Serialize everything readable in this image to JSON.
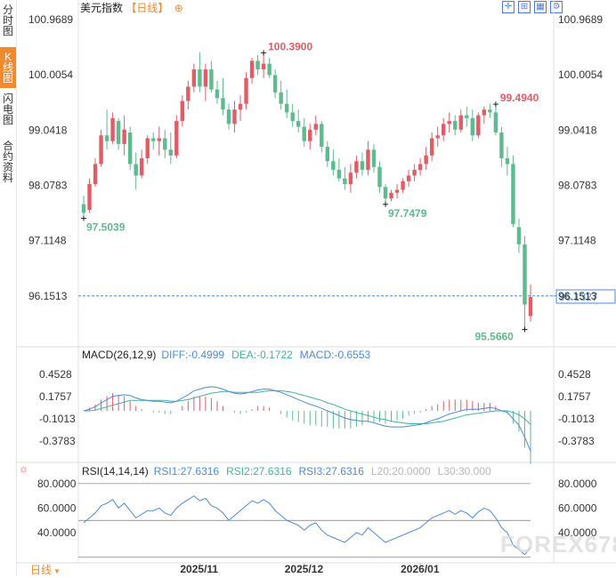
{
  "side_tabs": [
    {
      "label": "分时图",
      "active": false
    },
    {
      "label": "K线图",
      "active": true
    },
    {
      "label": "闪电图",
      "active": false
    },
    {
      "label": "合约资料",
      "active": false
    }
  ],
  "header": {
    "title": "美元指数",
    "period": "【日线】",
    "plus_icon": "⊕"
  },
  "toolbar": {
    "icons": [
      "crosshair-icon",
      "grid-icon",
      "calendar-icon",
      "settings-icon"
    ],
    "glyphs": [
      "✛",
      "⊞",
      "▦",
      "⚙"
    ]
  },
  "colors": {
    "up": "#e25b65",
    "down": "#5dbb8d",
    "dif": "#4b8ad6",
    "dea": "#3fb59b",
    "rsi": "#4b8ad6",
    "grid": "#e6e6e6",
    "last": "#4b8ad6",
    "accent": "#f28a2b"
  },
  "main_chart": {
    "y_ticks": [
      "100.9689",
      "100.0054",
      "99.0418",
      "98.0783",
      "97.1148",
      "96.1513"
    ],
    "y_min": 95.45,
    "y_max": 101.0,
    "last_price": "96.1327",
    "last_price_value": 96.1327,
    "dashed_level": 96.1513,
    "annotations": [
      {
        "label": "100.3900",
        "value": 100.39,
        "index": 31,
        "color": "#e25b65"
      },
      {
        "label": "99.4940",
        "value": 99.494,
        "index": 71,
        "color": "#e25b65"
      },
      {
        "label": "97.5039",
        "value": 97.5039,
        "index": 0,
        "color": "#5dbb8d"
      },
      {
        "label": "97.7479",
        "value": 97.7479,
        "index": 52,
        "color": "#5dbb8d"
      },
      {
        "label": "95.5660",
        "value": 95.566,
        "index": 76,
        "color": "#5dbb8d"
      }
    ]
  },
  "macd": {
    "label": "MACD(26,12,9)",
    "dif_label": "DIFF:-0.4999",
    "dea_label": "DEA:-0.1722",
    "macd_label": "MACD:-0.6553",
    "y_ticks": [
      "0.4528",
      "0.1757",
      "-0.1013",
      "-0.3783"
    ],
    "y_min": -0.62,
    "y_max": 0.62
  },
  "rsi": {
    "label": "RSI(14,14,14)",
    "rsi1_label": "RSI1:27.6316",
    "rsi2_label": "RSI2:27.6316",
    "rsi3_label": "RSI3:27.6316",
    "l20_label": "L20:20.0000",
    "l30_label": "L30:30.000",
    "y_ticks": [
      "80.0000",
      "60.0000",
      "40.0000"
    ],
    "y_min": 16,
    "y_max": 85,
    "sun_icon": "☼"
  },
  "x_labels": [
    {
      "label": "2025/11",
      "index": 20
    },
    {
      "label": "2025/12",
      "index": 38
    },
    {
      "label": "2026/01",
      "index": 58
    }
  ],
  "period_button": "日线",
  "watermark": "FOREX678",
  "chart_data": {
    "type": "candlestick",
    "title": "美元指数【日线】",
    "series": [
      {
        "name": "美元指数",
        "ohlc": [
          [
            97.75,
            97.9,
            97.5,
            97.6
          ],
          [
            97.65,
            98.2,
            97.6,
            98.1
          ],
          [
            98.1,
            98.55,
            98.05,
            98.45
          ],
          [
            98.45,
            99.05,
            98.4,
            98.95
          ],
          [
            98.95,
            99.4,
            98.7,
            98.85
          ],
          [
            98.85,
            99.35,
            98.8,
            99.25
          ],
          [
            99.2,
            99.25,
            98.7,
            98.8
          ],
          [
            98.8,
            99.3,
            98.6,
            99.05
          ],
          [
            99.0,
            99.1,
            98.35,
            98.45
          ],
          [
            98.45,
            98.65,
            98.0,
            98.25
          ],
          [
            98.25,
            98.7,
            98.2,
            98.55
          ],
          [
            98.55,
            98.95,
            98.45,
            98.9
          ],
          [
            98.9,
            99.0,
            98.7,
            98.85
          ],
          [
            98.85,
            99.1,
            98.6,
            98.9
          ],
          [
            98.9,
            99.05,
            98.55,
            98.7
          ],
          [
            98.7,
            99.0,
            98.45,
            98.6
          ],
          [
            98.6,
            99.3,
            98.55,
            99.2
          ],
          [
            99.2,
            99.65,
            99.1,
            99.55
          ],
          [
            99.55,
            99.9,
            99.4,
            99.8
          ],
          [
            99.8,
            100.2,
            99.7,
            100.1
          ],
          [
            100.1,
            100.4,
            99.7,
            99.8
          ],
          [
            99.8,
            100.2,
            99.55,
            100.1
          ],
          [
            100.1,
            100.25,
            99.7,
            99.75
          ],
          [
            99.75,
            99.9,
            99.5,
            99.6
          ],
          [
            99.6,
            99.95,
            99.3,
            99.4
          ],
          [
            99.4,
            99.5,
            99.05,
            99.15
          ],
          [
            99.15,
            99.55,
            99.0,
            99.4
          ],
          [
            99.4,
            99.65,
            99.2,
            99.5
          ],
          [
            99.5,
            100.05,
            99.4,
            99.95
          ],
          [
            99.95,
            100.3,
            99.85,
            100.25
          ],
          [
            100.25,
            100.35,
            100.0,
            100.1
          ],
          [
            100.1,
            100.39,
            99.95,
            100.2
          ],
          [
            100.2,
            100.3,
            99.95,
            100.0
          ],
          [
            100.0,
            100.1,
            99.6,
            99.7
          ],
          [
            99.7,
            99.9,
            99.4,
            99.5
          ],
          [
            99.5,
            99.75,
            99.25,
            99.35
          ],
          [
            99.35,
            99.5,
            99.1,
            99.2
          ],
          [
            99.2,
            99.4,
            99.0,
            99.1
          ],
          [
            99.1,
            99.25,
            98.75,
            98.85
          ],
          [
            98.85,
            99.15,
            98.7,
            99.05
          ],
          [
            99.05,
            99.3,
            98.95,
            99.15
          ],
          [
            99.15,
            99.2,
            98.65,
            98.75
          ],
          [
            98.75,
            98.85,
            98.4,
            98.5
          ],
          [
            98.5,
            98.7,
            98.25,
            98.35
          ],
          [
            98.35,
            98.55,
            98.15,
            98.2
          ],
          [
            98.2,
            98.4,
            98.0,
            98.1
          ],
          [
            98.1,
            98.45,
            97.95,
            98.3
          ],
          [
            98.3,
            98.6,
            98.2,
            98.5
          ],
          [
            98.5,
            98.65,
            98.25,
            98.35
          ],
          [
            98.35,
            98.85,
            98.25,
            98.7
          ],
          [
            98.7,
            98.8,
            98.3,
            98.4
          ],
          [
            98.4,
            98.5,
            97.95,
            98.05
          ],
          [
            98.05,
            98.1,
            97.75,
            97.85
          ],
          [
            97.85,
            98.0,
            97.8,
            97.95
          ],
          [
            97.95,
            98.1,
            97.85,
            98.0
          ],
          [
            98.0,
            98.2,
            97.95,
            98.15
          ],
          [
            98.15,
            98.35,
            98.05,
            98.25
          ],
          [
            98.25,
            98.45,
            98.15,
            98.35
          ],
          [
            98.35,
            98.55,
            98.25,
            98.45
          ],
          [
            98.45,
            98.75,
            98.35,
            98.6
          ],
          [
            98.6,
            99.0,
            98.5,
            98.9
          ],
          [
            98.9,
            99.1,
            98.75,
            98.95
          ],
          [
            98.95,
            99.25,
            98.85,
            99.15
          ],
          [
            99.15,
            99.35,
            99.0,
            99.2
          ],
          [
            99.2,
            99.3,
            98.95,
            99.05
          ],
          [
            99.05,
            99.4,
            99.0,
            99.3
          ],
          [
            99.3,
            99.45,
            99.1,
            99.25
          ],
          [
            99.25,
            99.4,
            98.85,
            98.95
          ],
          [
            98.95,
            99.35,
            98.9,
            99.3
          ],
          [
            99.3,
            99.45,
            99.15,
            99.4
          ],
          [
            99.4,
            99.5,
            99.25,
            99.35
          ],
          [
            99.35,
            99.494,
            98.95,
            99.0
          ],
          [
            99.0,
            99.1,
            98.4,
            98.55
          ],
          [
            98.55,
            98.75,
            98.25,
            98.45
          ],
          [
            98.45,
            98.6,
            97.35,
            97.4
          ],
          [
            97.35,
            97.5,
            96.9,
            97.05
          ],
          [
            97.05,
            97.2,
            95.566,
            96.0
          ],
          [
            95.8,
            96.35,
            95.7,
            96.1327
          ]
        ]
      }
    ],
    "macd": {
      "dif": [
        0.0,
        0.02,
        0.05,
        0.1,
        0.14,
        0.18,
        0.19,
        0.2,
        0.19,
        0.16,
        0.14,
        0.13,
        0.12,
        0.12,
        0.11,
        0.1,
        0.12,
        0.16,
        0.2,
        0.25,
        0.27,
        0.29,
        0.3,
        0.29,
        0.27,
        0.24,
        0.22,
        0.21,
        0.22,
        0.24,
        0.26,
        0.27,
        0.27,
        0.25,
        0.23,
        0.2,
        0.17,
        0.14,
        0.11,
        0.08,
        0.06,
        0.03,
        0.0,
        -0.03,
        -0.06,
        -0.09,
        -0.11,
        -0.12,
        -0.13,
        -0.13,
        -0.15,
        -0.17,
        -0.19,
        -0.2,
        -0.2,
        -0.2,
        -0.19,
        -0.18,
        -0.17,
        -0.15,
        -0.12,
        -0.1,
        -0.07,
        -0.04,
        -0.02,
        0.0,
        0.02,
        0.02,
        0.02,
        0.03,
        0.04,
        0.03,
        0.0,
        -0.02,
        -0.1,
        -0.18,
        -0.33,
        -0.5
      ],
      "dea": [
        0.0,
        0.0,
        0.01,
        0.03,
        0.05,
        0.07,
        0.09,
        0.11,
        0.13,
        0.13,
        0.13,
        0.13,
        0.13,
        0.13,
        0.13,
        0.12,
        0.12,
        0.13,
        0.14,
        0.16,
        0.18,
        0.2,
        0.22,
        0.23,
        0.24,
        0.24,
        0.23,
        0.23,
        0.23,
        0.23,
        0.23,
        0.24,
        0.25,
        0.25,
        0.25,
        0.24,
        0.23,
        0.21,
        0.19,
        0.17,
        0.15,
        0.13,
        0.1,
        0.08,
        0.05,
        0.02,
        0.0,
        -0.02,
        -0.04,
        -0.06,
        -0.08,
        -0.1,
        -0.11,
        -0.13,
        -0.14,
        -0.15,
        -0.16,
        -0.16,
        -0.16,
        -0.16,
        -0.15,
        -0.14,
        -0.13,
        -0.11,
        -0.09,
        -0.07,
        -0.05,
        -0.04,
        -0.03,
        -0.02,
        -0.01,
        0.0,
        0.0,
        0.0,
        -0.02,
        -0.05,
        -0.1,
        -0.17
      ],
      "hist": [
        0.0,
        0.04,
        0.08,
        0.14,
        0.18,
        0.22,
        0.2,
        0.18,
        0.12,
        0.06,
        0.02,
        0.0,
        -0.02,
        -0.02,
        -0.04,
        -0.04,
        0.0,
        0.06,
        0.12,
        0.18,
        0.18,
        0.18,
        0.16,
        0.12,
        0.06,
        0.0,
        -0.02,
        -0.04,
        -0.02,
        0.02,
        0.06,
        0.06,
        0.04,
        0.0,
        -0.04,
        -0.08,
        -0.12,
        -0.14,
        -0.16,
        -0.18,
        -0.18,
        -0.2,
        -0.2,
        -0.22,
        -0.22,
        -0.22,
        -0.22,
        -0.2,
        -0.18,
        -0.14,
        -0.14,
        -0.14,
        -0.16,
        -0.14,
        -0.12,
        -0.1,
        -0.06,
        -0.04,
        -0.02,
        0.02,
        0.06,
        0.08,
        0.12,
        0.14,
        0.14,
        0.14,
        0.14,
        0.12,
        0.1,
        0.1,
        0.1,
        0.06,
        0.0,
        -0.04,
        -0.16,
        -0.26,
        -0.46,
        -0.66
      ]
    },
    "rsi": [
      48,
      52,
      56,
      62,
      64,
      67,
      60,
      64,
      58,
      52,
      55,
      58,
      58,
      60,
      56,
      54,
      60,
      64,
      67,
      70,
      66,
      68,
      62,
      60,
      56,
      50,
      54,
      58,
      62,
      66,
      64,
      67,
      64,
      58,
      54,
      50,
      48,
      46,
      42,
      46,
      48,
      42,
      38,
      36,
      34,
      32,
      36,
      40,
      38,
      44,
      40,
      36,
      32,
      34,
      36,
      38,
      40,
      42,
      44,
      48,
      52,
      54,
      56,
      58,
      55,
      58,
      56,
      52,
      57,
      60,
      58,
      52,
      44,
      40,
      30,
      26,
      22,
      28
    ]
  }
}
